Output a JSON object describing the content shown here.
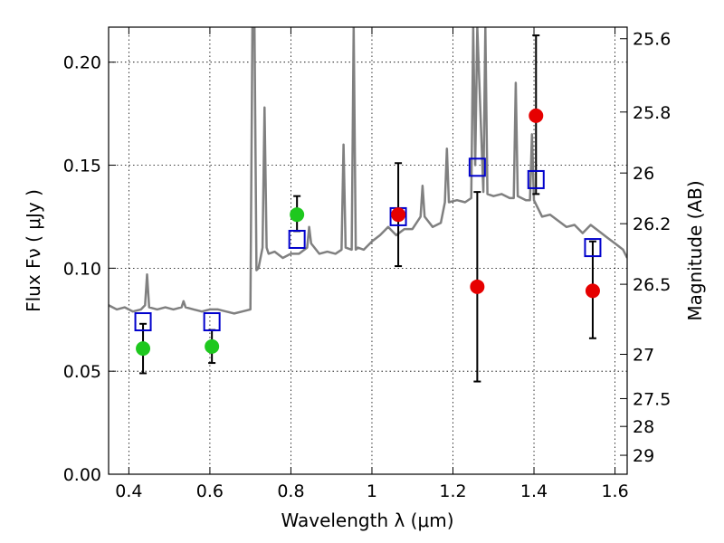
{
  "chart_data": {
    "type": "scatter",
    "xlabel": "Wavelength  λ (μm)",
    "ylabel": "Flux  Fν  ( μJy )",
    "ylabel_right": "Magnitude (AB)",
    "xlim": [
      0.35,
      1.63
    ],
    "ylim": [
      0.0,
      0.217
    ],
    "x_ticks": [
      0.4,
      0.6,
      0.8,
      1.0,
      1.2,
      1.4,
      1.6
    ],
    "x_tick_labels": [
      "0.4",
      "0.6",
      "0.8",
      "1",
      "1.2",
      "1.4",
      "1.6"
    ],
    "y_ticks": [
      0.0,
      0.05,
      0.1,
      0.15,
      0.2
    ],
    "y_tick_labels": [
      "0.00",
      "0.05",
      "0.10",
      "0.15",
      "0.20"
    ],
    "right_ticks": [
      {
        "label": "25.6",
        "flux": 0.2114
      },
      {
        "label": "25.8",
        "flux": 0.1758
      },
      {
        "label": "26",
        "flux": 0.1462
      },
      {
        "label": "26.2",
        "flux": 0.1216
      },
      {
        "label": "26.5",
        "flux": 0.0922
      },
      {
        "label": "27",
        "flux": 0.0582
      },
      {
        "label": "27.5",
        "flux": 0.0367
      },
      {
        "label": "28",
        "flux": 0.0232
      },
      {
        "label": "29",
        "flux": 0.0092
      }
    ],
    "grid": true,
    "colors": {
      "model": "#808080",
      "model_phot": "#0000cc",
      "obs_optical": "#1ec81e",
      "obs_ir": "#e60000",
      "errorbar": "#000000"
    },
    "model_spectrum": {
      "x": [
        0.35,
        0.37,
        0.39,
        0.41,
        0.43,
        0.44,
        0.445,
        0.45,
        0.47,
        0.49,
        0.51,
        0.53,
        0.535,
        0.54,
        0.56,
        0.58,
        0.6,
        0.62,
        0.64,
        0.66,
        0.68,
        0.7,
        0.705,
        0.71,
        0.715,
        0.72,
        0.73,
        0.735,
        0.74,
        0.745,
        0.76,
        0.78,
        0.8,
        0.82,
        0.84,
        0.845,
        0.85,
        0.87,
        0.89,
        0.91,
        0.925,
        0.93,
        0.935,
        0.95,
        0.955,
        0.96,
        0.965,
        0.98,
        1.0,
        1.02,
        1.04,
        1.06,
        1.08,
        1.1,
        1.12,
        1.125,
        1.13,
        1.15,
        1.17,
        1.18,
        1.185,
        1.19,
        1.21,
        1.23,
        1.245,
        1.25,
        1.255,
        1.26,
        1.275,
        1.28,
        1.285,
        1.3,
        1.32,
        1.34,
        1.35,
        1.355,
        1.36,
        1.38,
        1.39,
        1.395,
        1.4,
        1.42,
        1.44,
        1.46,
        1.48,
        1.5,
        1.52,
        1.54,
        1.56,
        1.58,
        1.6,
        1.62,
        1.63
      ],
      "y": [
        0.082,
        0.08,
        0.081,
        0.079,
        0.08,
        0.082,
        0.097,
        0.081,
        0.08,
        0.081,
        0.08,
        0.081,
        0.084,
        0.081,
        0.08,
        0.079,
        0.08,
        0.08,
        0.079,
        0.078,
        0.079,
        0.08,
        0.217,
        0.217,
        0.099,
        0.1,
        0.11,
        0.178,
        0.11,
        0.107,
        0.108,
        0.105,
        0.107,
        0.107,
        0.11,
        0.12,
        0.112,
        0.107,
        0.108,
        0.107,
        0.109,
        0.16,
        0.11,
        0.109,
        0.217,
        0.109,
        0.11,
        0.109,
        0.113,
        0.116,
        0.12,
        0.116,
        0.119,
        0.119,
        0.125,
        0.14,
        0.125,
        0.12,
        0.122,
        0.132,
        0.158,
        0.132,
        0.133,
        0.132,
        0.134,
        0.217,
        0.15,
        0.217,
        0.137,
        0.217,
        0.136,
        0.135,
        0.136,
        0.134,
        0.134,
        0.19,
        0.135,
        0.133,
        0.133,
        0.165,
        0.133,
        0.125,
        0.126,
        0.123,
        0.12,
        0.121,
        0.117,
        0.121,
        0.118,
        0.115,
        0.112,
        0.109,
        0.105
      ]
    },
    "series": [
      {
        "role": "model_phot",
        "marker": "square",
        "x": [
          0.435,
          0.605,
          0.815,
          1.065,
          1.26,
          1.405,
          1.545
        ],
        "y": [
          0.074,
          0.074,
          0.114,
          0.125,
          0.149,
          0.143,
          0.11
        ]
      },
      {
        "role": "obs_optical",
        "marker": "circle",
        "x": [
          0.435,
          0.605,
          0.815
        ],
        "y": [
          0.061,
          0.062,
          0.126
        ],
        "yerr_low": [
          0.049,
          0.054,
          0.118
        ],
        "yerr_high": [
          0.073,
          0.07,
          0.135
        ]
      },
      {
        "role": "obs_ir",
        "marker": "circle",
        "x": [
          1.065,
          1.26,
          1.405,
          1.545
        ],
        "y": [
          0.126,
          0.091,
          0.174,
          0.089
        ],
        "yerr_low": [
          0.101,
          0.045,
          0.136,
          0.066
        ],
        "yerr_high": [
          0.151,
          0.137,
          0.213,
          0.113
        ]
      }
    ]
  }
}
